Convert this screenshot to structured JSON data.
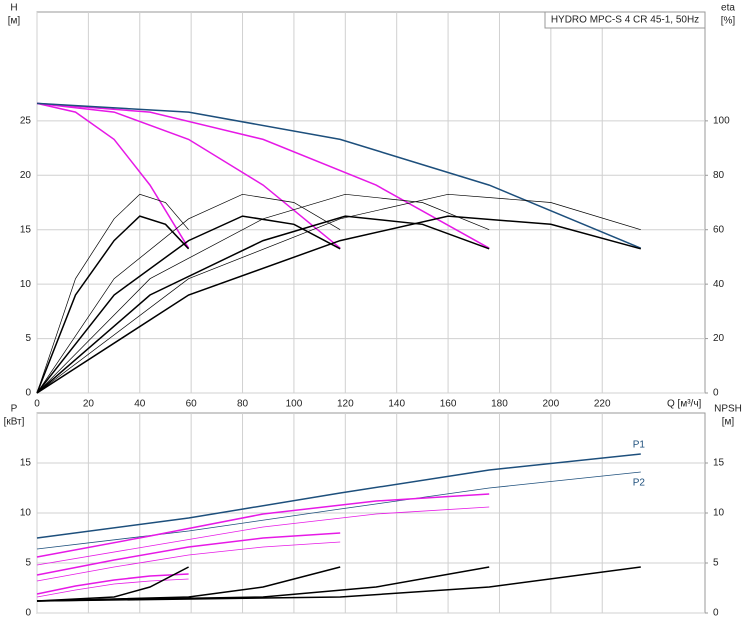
{
  "chart_data": [
    {
      "type": "line",
      "title": "HYDRO MPC-S 4 CR 45-1, 50Hz",
      "ylabel": "H",
      "yunit": "[м]",
      "y2label": "eta",
      "y2unit": "[%]",
      "xlabel": "Q [м³/ч]",
      "xlim": [
        0,
        260
      ],
      "xticks": [
        0,
        20,
        40,
        60,
        80,
        100,
        120,
        140,
        160,
        180,
        200,
        220
      ],
      "ylim": [
        0,
        35
      ],
      "yticks": [
        0,
        5,
        10,
        15,
        20,
        25
      ],
      "y2lim": [
        0,
        140
      ],
      "y2ticks": [
        0,
        20,
        40,
        60,
        80,
        100
      ],
      "grid": true,
      "series": [
        {
          "color": "#e619e6",
          "width": 1.5,
          "x": [
            0,
            15,
            30,
            44,
            59
          ],
          "values": [
            26.6,
            25.8,
            23.3,
            19.1,
            13.3
          ]
        },
        {
          "color": "#e619e6",
          "width": 1.5,
          "x": [
            0,
            30,
            59,
            88,
            118
          ],
          "values": [
            26.6,
            25.8,
            23.3,
            19.1,
            13.3
          ]
        },
        {
          "color": "#e619e6",
          "width": 1.5,
          "x": [
            0,
            44,
            88,
            132,
            176
          ],
          "values": [
            26.6,
            25.8,
            23.3,
            19.1,
            13.3
          ]
        },
        {
          "color": "#1d4f7c",
          "width": 1.5,
          "x": [
            0,
            59,
            118,
            176,
            235
          ],
          "values": [
            26.6,
            25.8,
            23.3,
            19.1,
            13.3
          ]
        },
        {
          "color": "#000000",
          "width": 1.5,
          "axis": "y2",
          "x": [
            0,
            15,
            30,
            40,
            50,
            59
          ],
          "values": [
            0,
            36,
            56,
            65,
            62,
            53
          ]
        },
        {
          "color": "#000000",
          "width": 1.5,
          "axis": "y2",
          "x": [
            0,
            30,
            59,
            80,
            100,
            118
          ],
          "values": [
            0,
            36,
            56,
            65,
            62,
            53
          ]
        },
        {
          "color": "#000000",
          "width": 1.5,
          "axis": "y2",
          "x": [
            0,
            44,
            88,
            120,
            150,
            176
          ],
          "values": [
            0,
            36,
            56,
            65,
            62,
            53
          ]
        },
        {
          "color": "#000000",
          "width": 1.5,
          "axis": "y2",
          "x": [
            0,
            59,
            118,
            160,
            200,
            235
          ],
          "values": [
            0,
            36,
            56,
            65,
            62,
            53
          ]
        },
        {
          "color": "#000000",
          "width": 0.7,
          "axis": "y2",
          "x": [
            0,
            15,
            30,
            40,
            50,
            59
          ],
          "values": [
            0,
            42,
            64,
            73,
            70,
            60
          ]
        },
        {
          "color": "#000000",
          "width": 0.7,
          "axis": "y2",
          "x": [
            0,
            30,
            59,
            80,
            100,
            118
          ],
          "values": [
            0,
            42,
            64,
            73,
            70,
            60
          ]
        },
        {
          "color": "#000000",
          "width": 0.7,
          "axis": "y2",
          "x": [
            0,
            44,
            88,
            120,
            150,
            176
          ],
          "values": [
            0,
            42,
            64,
            73,
            70,
            60
          ]
        },
        {
          "color": "#000000",
          "width": 0.7,
          "axis": "y2",
          "x": [
            0,
            59,
            118,
            160,
            200,
            235
          ],
          "values": [
            0,
            42,
            64,
            73,
            70,
            60
          ]
        }
      ]
    },
    {
      "type": "line",
      "ylabel": "P",
      "yunit": "[кВт]",
      "y2label": "NPSH",
      "y2unit": "[м]",
      "xlim": [
        0,
        260
      ],
      "ylim": [
        0,
        20
      ],
      "yticks": [
        0,
        5,
        10,
        15
      ],
      "y2lim": [
        0,
        20
      ],
      "y2ticks": [
        0,
        5,
        10,
        15
      ],
      "grid": true,
      "series": [
        {
          "name": "P1",
          "color": "#1d4f7c",
          "width": 1.5,
          "x": [
            0,
            59,
            118,
            176,
            235
          ],
          "values": [
            7.5,
            9.5,
            12.0,
            14.3,
            15.9
          ]
        },
        {
          "name": "P2",
          "color": "#1d4f7c",
          "width": 0.8,
          "x": [
            0,
            59,
            118,
            176,
            235
          ],
          "values": [
            6.4,
            8.2,
            10.4,
            12.5,
            14.1
          ]
        },
        {
          "color": "#e619e6",
          "width": 1.5,
          "x": [
            0,
            44,
            88,
            132,
            176
          ],
          "values": [
            5.6,
            7.7,
            9.9,
            11.2,
            11.9
          ]
        },
        {
          "color": "#e619e6",
          "width": 0.8,
          "x": [
            0,
            44,
            88,
            132,
            176
          ],
          "values": [
            4.8,
            6.7,
            8.6,
            9.9,
            10.6
          ]
        },
        {
          "color": "#e619e6",
          "width": 1.5,
          "x": [
            0,
            30,
            59,
            88,
            118
          ],
          "values": [
            3.8,
            5.3,
            6.6,
            7.5,
            8.0
          ]
        },
        {
          "color": "#e619e6",
          "width": 0.8,
          "x": [
            0,
            30,
            59,
            88,
            118
          ],
          "values": [
            3.2,
            4.6,
            5.8,
            6.6,
            7.1
          ]
        },
        {
          "color": "#e619e6",
          "width": 1.5,
          "x": [
            0,
            15,
            30,
            44,
            59
          ],
          "values": [
            1.9,
            2.7,
            3.3,
            3.7,
            3.9
          ]
        },
        {
          "color": "#e619e6",
          "width": 0.8,
          "x": [
            0,
            15,
            30,
            44,
            59
          ],
          "values": [
            1.6,
            2.3,
            2.9,
            3.2,
            3.4
          ]
        },
        {
          "color": "#000000",
          "width": 1.5,
          "axis": "y2",
          "x": [
            0,
            30,
            44,
            59
          ],
          "values": [
            1.2,
            1.6,
            2.6,
            4.6
          ]
        },
        {
          "color": "#000000",
          "width": 1.5,
          "axis": "y2",
          "x": [
            0,
            59,
            88,
            118
          ],
          "values": [
            1.2,
            1.6,
            2.6,
            4.6
          ]
        },
        {
          "color": "#000000",
          "width": 1.5,
          "axis": "y2",
          "x": [
            0,
            88,
            132,
            176
          ],
          "values": [
            1.2,
            1.6,
            2.6,
            4.6
          ]
        },
        {
          "color": "#000000",
          "width": 1.5,
          "axis": "y2",
          "x": [
            0,
            118,
            176,
            235
          ],
          "values": [
            1.2,
            1.6,
            2.6,
            4.6
          ]
        }
      ]
    }
  ]
}
